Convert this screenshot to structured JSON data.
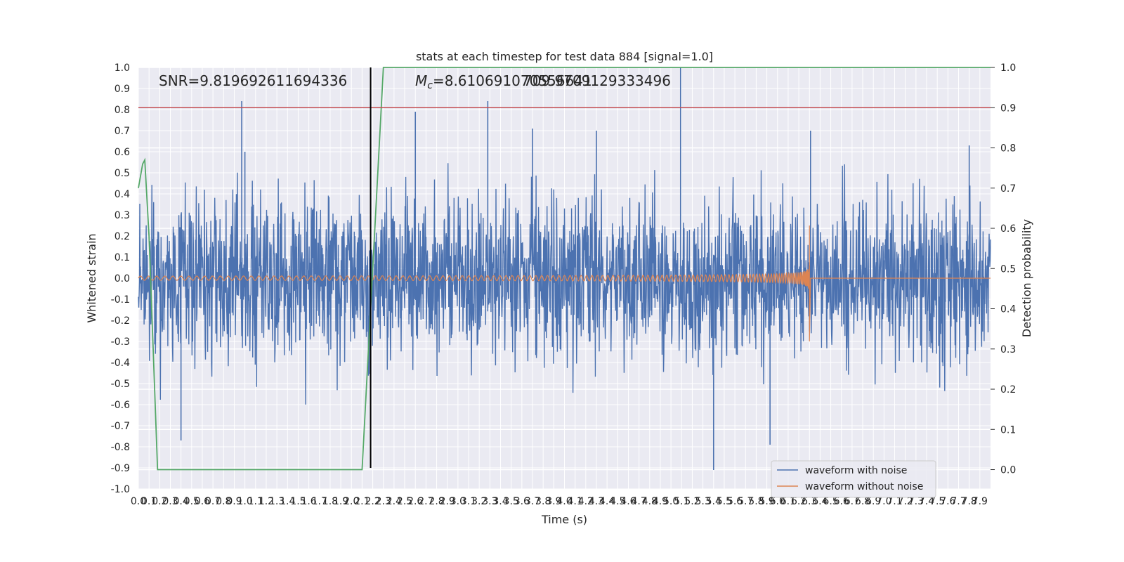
{
  "chart_data": {
    "type": "line",
    "title": "stats at each timestep for test data 884 [signal=1.0]",
    "xlabel": "Time (s)",
    "ylabel": "Whitened strain",
    "ylabel_right": "Detection probability",
    "xlim": [
      0.0,
      8.0
    ],
    "ylim": [
      -1.0,
      1.0
    ],
    "ylim_right": [
      -0.048,
      1.0
    ],
    "grid": true,
    "legend_position": "lower-right",
    "x_ticks": [
      "0.0",
      "0.1",
      "0.2",
      "0.3",
      "0.4",
      "0.5",
      "0.6",
      "0.7",
      "0.8",
      "0.9",
      "1.0",
      "1.1",
      "1.2",
      "1.3",
      "1.4",
      "1.5",
      "1.6",
      "1.7",
      "1.8",
      "1.9",
      "2.0",
      "2.1",
      "2.2",
      "2.3",
      "2.4",
      "2.5",
      "2.6",
      "2.7",
      "2.8",
      "2.9",
      "3.0",
      "3.1",
      "3.2",
      "3.3",
      "3.4",
      "3.5",
      "3.6",
      "3.7",
      "3.8",
      "3.9",
      "4.0",
      "4.1",
      "4.2",
      "4.3",
      "4.4",
      "4.5",
      "4.6",
      "4.7",
      "4.8",
      "4.9",
      "5.0",
      "5.1",
      "5.2",
      "5.3",
      "5.4",
      "5.5",
      "5.6",
      "5.7",
      "5.8",
      "5.9",
      "6.0",
      "6.1",
      "6.2",
      "6.3",
      "6.4",
      "6.5",
      "6.6",
      "6.7",
      "6.8",
      "6.9",
      "7.0",
      "7.1",
      "7.2",
      "7.3",
      "7.4",
      "7.5",
      "7.6",
      "7.7",
      "7.8",
      "7.9"
    ],
    "y_ticks": [
      "-1.0",
      "-0.9",
      "-0.8",
      "-0.7",
      "-0.6",
      "-0.5",
      "-0.4",
      "-0.3",
      "-0.2",
      "-0.1",
      "0.0",
      "0.1",
      "0.2",
      "0.3",
      "0.4",
      "0.5",
      "0.6",
      "0.7",
      "0.8",
      "0.9",
      "1.0"
    ],
    "y_ticks_right": [
      "0.0",
      "0.1",
      "0.2",
      "0.3",
      "0.4",
      "0.5",
      "0.6",
      "0.7",
      "0.8",
      "0.9",
      "1.0"
    ],
    "annotations": {
      "snr": "SNR=9.819692611694336",
      "mc_prefix": "M",
      "mc_sub": "c",
      "mc_value": "=8.610691070556641",
      "mc_overlap": "709.9709129333496"
    },
    "series": [
      {
        "name": "waveform with noise",
        "color": "#4c72b0",
        "description": "noisy whitened strain spanning roughly -0.6 to 0.6 with spikes up to 1.0 and down to -0.91",
        "spikes": [
          {
            "x": 0.97,
            "y": 0.84
          },
          {
            "x": 3.28,
            "y": 0.84
          },
          {
            "x": 5.09,
            "y": 1.0
          },
          {
            "x": 2.6,
            "y": 0.79
          },
          {
            "x": 5.4,
            "y": -0.91
          },
          {
            "x": 0.4,
            "y": -0.77
          },
          {
            "x": 6.31,
            "y": 0.7
          },
          {
            "x": 5.93,
            "y": -0.79
          },
          {
            "x": 1.0,
            "y": 0.6
          },
          {
            "x": 3.7,
            "y": 0.71
          },
          {
            "x": 4.3,
            "y": 0.7
          },
          {
            "x": 7.8,
            "y": 0.63
          }
        ]
      },
      {
        "name": "waveform without noise",
        "color": "#dd8452",
        "description": "chirp signal with growing amplitude ending at about t=6.3 s",
        "start_amplitude": 0.01,
        "peak": {
          "x": 6.3,
          "y_max": 0.25,
          "y_min": -0.3
        },
        "end_x": 6.3
      },
      {
        "name": "detection probability",
        "color": "#55a868",
        "axis": "right",
        "points": [
          {
            "x": 0.0,
            "y": 0.7
          },
          {
            "x": 0.04,
            "y": 0.76
          },
          {
            "x": 0.06,
            "y": 0.77
          },
          {
            "x": 0.1,
            "y": 0.58
          },
          {
            "x": 0.18,
            "y": 0.0
          },
          {
            "x": 0.5,
            "y": 0.0
          },
          {
            "x": 1.0,
            "y": 0.0
          },
          {
            "x": 1.6,
            "y": 0.0
          },
          {
            "x": 2.1,
            "y": 0.0
          },
          {
            "x": 2.25,
            "y": 0.75
          },
          {
            "x": 2.3,
            "y": 1.0
          },
          {
            "x": 8.0,
            "y": 1.0
          }
        ]
      }
    ],
    "threshold_line": {
      "y": 0.9,
      "axis": "right",
      "color": "#c44e52"
    },
    "vertical_line": {
      "x": 2.18,
      "y_range": [
        -0.9,
        1.0
      ],
      "color": "#000000"
    }
  },
  "legend": {
    "noise_label": "waveform with noise",
    "clean_label": "waveform without noise",
    "noise_color": "#4c72b0",
    "clean_color": "#dd8452"
  },
  "colors": {
    "plot_bg": "#eaeaf2",
    "grid": "#ffffff"
  }
}
